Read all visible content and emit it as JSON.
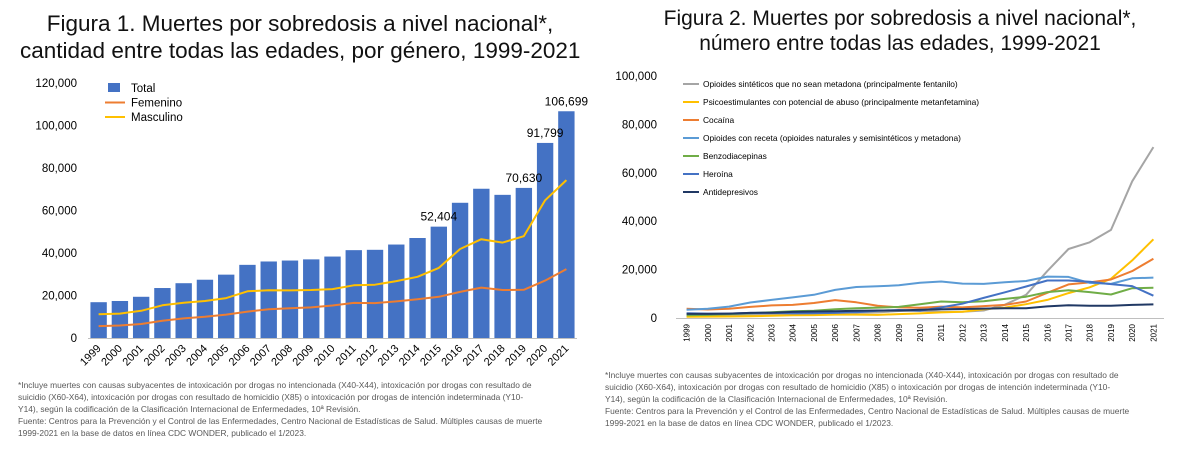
{
  "figure1": {
    "title_lines": [
      "Figura 1. Muertes por sobredosis a nivel nacional*,",
      "cantidad entre todas las edades, por género, 1999-2021"
    ],
    "footnote_lines": [
      "*Incluye muertes con causas subyacentes de intoxicación por drogas no intencionada (X40-X44), intoxicación por drogas con resultado de",
      "suicidio (X60-X64), intoxicación por drogas con resultado de homicidio (X85) o intoxicación por drogas de intención indeterminada (Y10-",
      "Y14), según la codificación de la Clasificación Internacional de Enfermedades, 10ª Revisión.",
      "Fuente: Centros para la Prevención y el Control de las Enfermedades, Centro Nacional de Estadísticas de Salud. Múltiples causas de muerte",
      "1999-2021 en la base de datos en línea CDC WONDER, publicado el 1/2023."
    ]
  },
  "figure2": {
    "title_lines": [
      "Figura 2. Muertes por sobredosis a nivel nacional*,",
      "número entre todas las edades, 1999-2021"
    ],
    "footnote_lines": [
      "*Incluye muertes con causas subyacentes de intoxicación por drogas no intencionada (X40-X44), intoxicación por drogas con resultado de",
      "suicidio (X60-X64), intoxicación por drogas con resultado de homicidio (X85) o intoxicación por drogas de intención indeterminada (Y10-",
      "Y14), según la codificación de la Clasificación Internacional de Enfermedades, 10ª Revisión.",
      "Fuente: Centros para la Prevención y el Control de las Enfermedades, Centro Nacional de Estadísticas de Salud. Múltiples causas de muerte",
      "1999-2021 en la base de datos en línea CDC WONDER, publicado el 1/2023."
    ]
  },
  "chart_data": [
    {
      "type": "bar",
      "title": "Figura 1. Muertes por sobredosis a nivel nacional*, cantidad entre todas las edades, por género, 1999-2021",
      "categories": [
        "1999",
        "2000",
        "2001",
        "2002",
        "2003",
        "2004",
        "2005",
        "2006",
        "2007",
        "2008",
        "2009",
        "2010",
        "2011",
        "2012",
        "2013",
        "2014",
        "2015",
        "2016",
        "2017",
        "2018",
        "2019",
        "2020",
        "2021"
      ],
      "ylim": [
        0,
        120000
      ],
      "yticks": [
        0,
        20000,
        40000,
        60000,
        80000,
        100000,
        120000
      ],
      "ytick_labels": [
        "0",
        "20,000",
        "40,000",
        "60,000",
        "80,000",
        "100,000",
        "120,000"
      ],
      "grid": false,
      "legend_position": "top-left",
      "series": [
        {
          "name": "Total",
          "kind": "bar",
          "color": "#4472C4",
          "values": [
            16849,
            17415,
            19394,
            23518,
            25785,
            27424,
            29813,
            34425,
            36010,
            36450,
            37004,
            38329,
            41340,
            41502,
            43982,
            47055,
            52404,
            63632,
            70237,
            67367,
            70630,
            91799,
            106699
          ]
        },
        {
          "name": "Femenino",
          "kind": "line",
          "color": "#ED7D31",
          "values": [
            5600,
            5900,
            6600,
            8100,
            9200,
            10000,
            11000,
            12400,
            13500,
            14000,
            14400,
            15300,
            16500,
            16400,
            17200,
            18200,
            19400,
            21700,
            23700,
            22600,
            22700,
            27000,
            32400
          ]
        },
        {
          "name": "Masculino",
          "kind": "line",
          "color": "#FFC000",
          "values": [
            11200,
            11500,
            12800,
            15400,
            16600,
            17400,
            18800,
            22000,
            22500,
            22400,
            22600,
            23000,
            24800,
            25100,
            26800,
            28800,
            33000,
            41900,
            46500,
            44900,
            47900,
            64800,
            74300
          ]
        }
      ],
      "data_labels": [
        {
          "category": "2015",
          "value": 52404,
          "text": "52,404"
        },
        {
          "category": "2019",
          "value": 70630,
          "text": "70,630"
        },
        {
          "category": "2020",
          "value": 91799,
          "text": "91,799"
        },
        {
          "category": "2021",
          "value": 106699,
          "text": "106,699"
        }
      ]
    },
    {
      "type": "line",
      "title": "Figura 2. Muertes por sobredosis a nivel nacional*, número entre todas las edades, 1999-2021",
      "x": [
        "1999",
        "2000",
        "2001",
        "2002",
        "2003",
        "2004",
        "2005",
        "2006",
        "2007",
        "2008",
        "2009",
        "2010",
        "2011",
        "2012",
        "2013",
        "2014",
        "2015",
        "2016",
        "2017",
        "2018",
        "2019",
        "2020",
        "2021"
      ],
      "ylim": [
        0,
        100000
      ],
      "yticks": [
        0,
        20000,
        40000,
        60000,
        80000,
        100000
      ],
      "ytick_labels": [
        "0",
        "20,000",
        "40,000",
        "60,000",
        "80,000",
        "100,000"
      ],
      "grid": false,
      "legend_position": "top-left",
      "series": [
        {
          "name": "Opioides sintéticos que no sean metadona (principalmente fentanilo)",
          "color": "#A5A5A5",
          "values": [
            730,
            780,
            960,
            1300,
            1400,
            1660,
            1740,
            2700,
            2200,
            2300,
            2900,
            3000,
            2600,
            2600,
            3100,
            5500,
            9600,
            19400,
            28500,
            31300,
            36400,
            56500,
            70600
          ]
        },
        {
          "name": "Psicoestimulantes con potencial de abuso (principalmente metanfetamina)",
          "color": "#FFC000",
          "values": [
            550,
            580,
            600,
            700,
            900,
            1100,
            1200,
            1400,
            1400,
            1300,
            1600,
            1900,
            2300,
            2600,
            3600,
            4300,
            5700,
            7500,
            10300,
            12700,
            16200,
            23800,
            32500
          ]
        },
        {
          "name": "Cocaína",
          "color": "#ED7D31",
          "values": [
            3800,
            3500,
            3800,
            4600,
            5200,
            5400,
            6200,
            7400,
            6500,
            5100,
            4400,
            4200,
            4700,
            4400,
            4900,
            5400,
            6800,
            10400,
            13900,
            14700,
            15900,
            19400,
            24500
          ]
        },
        {
          "name": "Opioides con receta (opioides naturales y semisintéticos y metadona)",
          "color": "#5B9BD5",
          "values": [
            3400,
            3800,
            4700,
            6400,
            7500,
            8500,
            9600,
            11600,
            12800,
            13100,
            13500,
            14600,
            15100,
            14200,
            14100,
            14800,
            15300,
            17100,
            17000,
            14500,
            14100,
            16400,
            16700
          ]
        },
        {
          "name": "Benzodiacepinas",
          "color": "#70AD47",
          "values": [
            1100,
            1300,
            1600,
            2000,
            2400,
            2800,
            3000,
            3600,
            4000,
            4300,
            4600,
            5700,
            6800,
            6500,
            6900,
            7900,
            8800,
            10700,
            11500,
            10700,
            9700,
            12300,
            12500
          ]
        },
        {
          "name": "Heroína",
          "color": "#4472C4",
          "values": [
            2000,
            1800,
            1800,
            2100,
            2100,
            1900,
            2000,
            2100,
            2400,
            3000,
            3300,
            3000,
            4400,
            5900,
            8300,
            10600,
            13000,
            15500,
            15500,
            15000,
            14000,
            13200,
            9200
          ]
        },
        {
          "name": "Antidepresivos",
          "color": "#203864",
          "values": [
            1700,
            1700,
            1800,
            2100,
            2200,
            2500,
            2700,
            2800,
            3000,
            3100,
            3100,
            3400,
            3600,
            3700,
            3900,
            4000,
            4000,
            4800,
            5300,
            5100,
            5100,
            5400,
            5600
          ]
        }
      ]
    }
  ]
}
